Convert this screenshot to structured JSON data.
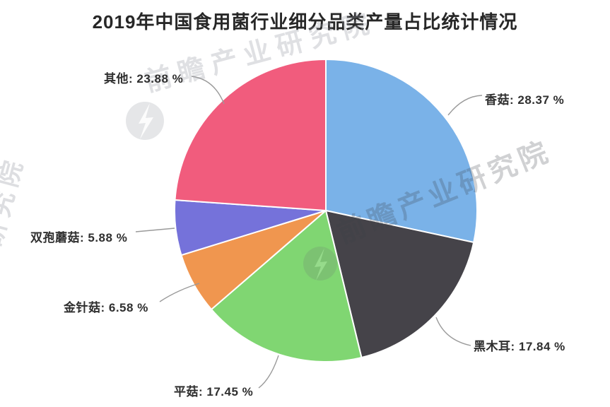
{
  "title": "2019年中国食用菌行业细分品类产量占比统计情况",
  "chart_data": {
    "type": "pie",
    "title": "2019年中国食用菌行业细分品类产量占比统计情况",
    "categories": [
      "香菇",
      "黑木耳",
      "平菇",
      "金针菇",
      "双孢蘑菇",
      "其他"
    ],
    "values": [
      28.37,
      17.84,
      17.45,
      6.58,
      5.88,
      23.88
    ],
    "unit": "%",
    "colors": [
      "#7ab2e8",
      "#454349",
      "#80d672",
      "#f0964f",
      "#7572da",
      "#f15c7d"
    ],
    "start_angle": "12-oclock",
    "direction": "clockwise",
    "slice_border_color": "#ffffff",
    "leader_line_color": "#9a9a9a",
    "legend": "none",
    "labels": [
      "香菇: 28.37 %",
      "黑木耳: 17.84 %",
      "平菇: 17.45 %",
      "金针菇: 6.58 %",
      "双孢蘑菇: 5.88 %",
      "其他: 23.88 %"
    ]
  },
  "watermark": {
    "text": "前瞻产业研究院",
    "text_short": "研究院",
    "logo": "qianzhan-logo"
  }
}
